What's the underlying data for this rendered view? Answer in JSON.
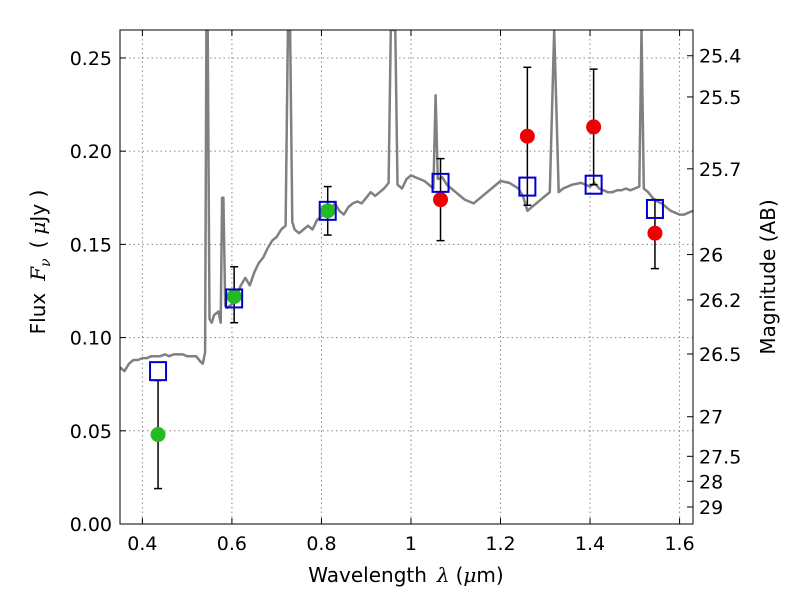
{
  "chart_data": {
    "type": "scatter",
    "xlabel_prefix": "Wavelength",
    "xlabel_symbol": "λ",
    "xlabel_unit_open": "(",
    "xlabel_unit_mu": "μ",
    "xlabel_unit_rest": "m)",
    "ylabel_prefix": "Flux",
    "ylabel_symbol_main": "F",
    "ylabel_symbol_sub": "ν",
    "ylabel_unit_open": "(",
    "ylabel_unit_mu": "μ",
    "ylabel_unit_rest": "Jy )",
    "y2label": "Magnitude (AB)",
    "xlim": [
      0.35,
      1.63
    ],
    "ylim": [
      0.0,
      0.265
    ],
    "grid": true,
    "x_ticks": [
      {
        "value": 0.4,
        "label": "0.4"
      },
      {
        "value": 0.6,
        "label": "0.6"
      },
      {
        "value": 0.8,
        "label": "0.8"
      },
      {
        "value": 1.0,
        "label": "1"
      },
      {
        "value": 1.2,
        "label": "1.2"
      },
      {
        "value": 1.4,
        "label": "1.4"
      },
      {
        "value": 1.6,
        "label": "1.6"
      }
    ],
    "y_ticks": [
      {
        "value": 0.0,
        "label": "0.00"
      },
      {
        "value": 0.05,
        "label": "0.05"
      },
      {
        "value": 0.1,
        "label": "0.10"
      },
      {
        "value": 0.15,
        "label": "0.15"
      },
      {
        "value": 0.2,
        "label": "0.20"
      },
      {
        "value": 0.25,
        "label": "0.25"
      }
    ],
    "mag_ticks": [
      {
        "mag": 25.4,
        "label": "25.4"
      },
      {
        "mag": 25.5,
        "label": "25.5"
      },
      {
        "mag": 25.7,
        "label": "25.7"
      },
      {
        "mag": 26.0,
        "label": "26"
      },
      {
        "mag": 26.2,
        "label": "26.2"
      },
      {
        "mag": 26.5,
        "label": "26.5"
      },
      {
        "mag": 27.0,
        "label": "27"
      },
      {
        "mag": 27.5,
        "label": "27.5"
      },
      {
        "mag": 28.0,
        "label": "28"
      },
      {
        "mag": 29.0,
        "label": "29"
      }
    ],
    "colors": {
      "sed": "#808080",
      "model": "#0000cc",
      "green": "#22bb22",
      "red": "#ee0000",
      "errorbar": "#000000",
      "grid": "#888888"
    },
    "sed_model": [
      [
        0.35,
        0.084
      ],
      [
        0.36,
        0.082
      ],
      [
        0.37,
        0.086
      ],
      [
        0.38,
        0.088
      ],
      [
        0.39,
        0.088
      ],
      [
        0.4,
        0.089
      ],
      [
        0.41,
        0.089
      ],
      [
        0.42,
        0.09
      ],
      [
        0.43,
        0.09
      ],
      [
        0.44,
        0.09
      ],
      [
        0.45,
        0.091
      ],
      [
        0.46,
        0.09
      ],
      [
        0.47,
        0.091
      ],
      [
        0.48,
        0.091
      ],
      [
        0.49,
        0.091
      ],
      [
        0.5,
        0.09
      ],
      [
        0.51,
        0.09
      ],
      [
        0.52,
        0.09
      ],
      [
        0.53,
        0.087
      ],
      [
        0.535,
        0.086
      ],
      [
        0.54,
        0.092
      ],
      [
        0.543,
        0.265
      ],
      [
        0.546,
        0.265
      ],
      [
        0.55,
        0.11
      ],
      [
        0.555,
        0.108
      ],
      [
        0.56,
        0.112
      ],
      [
        0.57,
        0.114
      ],
      [
        0.575,
        0.108
      ],
      [
        0.578,
        0.175
      ],
      [
        0.581,
        0.175
      ],
      [
        0.585,
        0.117
      ],
      [
        0.59,
        0.116
      ],
      [
        0.6,
        0.118
      ],
      [
        0.61,
        0.122
      ],
      [
        0.62,
        0.128
      ],
      [
        0.63,
        0.132
      ],
      [
        0.64,
        0.128
      ],
      [
        0.65,
        0.135
      ],
      [
        0.66,
        0.14
      ],
      [
        0.67,
        0.143
      ],
      [
        0.68,
        0.148
      ],
      [
        0.69,
        0.152
      ],
      [
        0.7,
        0.154
      ],
      [
        0.71,
        0.158
      ],
      [
        0.72,
        0.16
      ],
      [
        0.725,
        0.265
      ],
      [
        0.73,
        0.265
      ],
      [
        0.735,
        0.162
      ],
      [
        0.74,
        0.158
      ],
      [
        0.75,
        0.156
      ],
      [
        0.76,
        0.158
      ],
      [
        0.77,
        0.16
      ],
      [
        0.78,
        0.158
      ],
      [
        0.79,
        0.163
      ],
      [
        0.8,
        0.165
      ],
      [
        0.81,
        0.168
      ],
      [
        0.82,
        0.168
      ],
      [
        0.83,
        0.172
      ],
      [
        0.84,
        0.168
      ],
      [
        0.85,
        0.166
      ],
      [
        0.86,
        0.17
      ],
      [
        0.87,
        0.172
      ],
      [
        0.88,
        0.173
      ],
      [
        0.89,
        0.172
      ],
      [
        0.9,
        0.175
      ],
      [
        0.91,
        0.178
      ],
      [
        0.92,
        0.176
      ],
      [
        0.93,
        0.178
      ],
      [
        0.94,
        0.18
      ],
      [
        0.95,
        0.183
      ],
      [
        0.955,
        0.265
      ],
      [
        0.96,
        0.265
      ],
      [
        0.965,
        0.265
      ],
      [
        0.97,
        0.182
      ],
      [
        0.98,
        0.18
      ],
      [
        0.99,
        0.185
      ],
      [
        1.0,
        0.187
      ],
      [
        1.01,
        0.186
      ],
      [
        1.02,
        0.185
      ],
      [
        1.03,
        0.184
      ],
      [
        1.04,
        0.182
      ],
      [
        1.05,
        0.18
      ],
      [
        1.055,
        0.23
      ],
      [
        1.06,
        0.185
      ],
      [
        1.07,
        0.186
      ],
      [
        1.08,
        0.182
      ],
      [
        1.09,
        0.18
      ],
      [
        1.1,
        0.178
      ],
      [
        1.11,
        0.176
      ],
      [
        1.12,
        0.174
      ],
      [
        1.14,
        0.172
      ],
      [
        1.16,
        0.176
      ],
      [
        1.18,
        0.18
      ],
      [
        1.2,
        0.184
      ],
      [
        1.22,
        0.183
      ],
      [
        1.24,
        0.18
      ],
      [
        1.25,
        0.176
      ],
      [
        1.26,
        0.168
      ],
      [
        1.27,
        0.17
      ],
      [
        1.28,
        0.172
      ],
      [
        1.29,
        0.174
      ],
      [
        1.3,
        0.176
      ],
      [
        1.31,
        0.178
      ],
      [
        1.32,
        0.265
      ],
      [
        1.33,
        0.178
      ],
      [
        1.34,
        0.18
      ],
      [
        1.36,
        0.182
      ],
      [
        1.38,
        0.183
      ],
      [
        1.39,
        0.182
      ],
      [
        1.4,
        0.181
      ],
      [
        1.41,
        0.183
      ],
      [
        1.42,
        0.18
      ],
      [
        1.43,
        0.179
      ],
      [
        1.44,
        0.178
      ],
      [
        1.45,
        0.178
      ],
      [
        1.46,
        0.179
      ],
      [
        1.47,
        0.179
      ],
      [
        1.48,
        0.18
      ],
      [
        1.49,
        0.179
      ],
      [
        1.5,
        0.18
      ],
      [
        1.51,
        0.181
      ],
      [
        1.515,
        0.265
      ],
      [
        1.52,
        0.18
      ],
      [
        1.53,
        0.178
      ],
      [
        1.54,
        0.175
      ],
      [
        1.55,
        0.173
      ],
      [
        1.56,
        0.172
      ],
      [
        1.57,
        0.17
      ],
      [
        1.58,
        0.168
      ],
      [
        1.59,
        0.167
      ],
      [
        1.6,
        0.166
      ],
      [
        1.61,
        0.166
      ],
      [
        1.62,
        0.167
      ],
      [
        1.63,
        0.168
      ]
    ],
    "model_fluxes": [
      {
        "x": 0.435,
        "y": 0.082
      },
      {
        "x": 0.605,
        "y": 0.121
      },
      {
        "x": 0.814,
        "y": 0.168
      },
      {
        "x": 1.066,
        "y": 0.183
      },
      {
        "x": 1.26,
        "y": 0.181
      },
      {
        "x": 1.408,
        "y": 0.182
      },
      {
        "x": 1.545,
        "y": 0.169
      }
    ],
    "observed_green": [
      {
        "x": 0.435,
        "y": 0.048,
        "yerr_low": 0.019,
        "yerr_high": 0.077
      },
      {
        "x": 0.605,
        "y": 0.122,
        "yerr_low": 0.108,
        "yerr_high": 0.138
      },
      {
        "x": 0.814,
        "y": 0.168,
        "yerr_low": 0.155,
        "yerr_high": 0.181
      }
    ],
    "observed_red": [
      {
        "x": 1.066,
        "y": 0.174,
        "yerr_low": 0.152,
        "yerr_high": 0.196
      },
      {
        "x": 1.26,
        "y": 0.208,
        "yerr_low": 0.171,
        "yerr_high": 0.245
      },
      {
        "x": 1.408,
        "y": 0.213,
        "yerr_low": 0.182,
        "yerr_high": 0.244
      },
      {
        "x": 1.545,
        "y": 0.156,
        "yerr_low": 0.137,
        "yerr_high": 0.174
      }
    ]
  }
}
